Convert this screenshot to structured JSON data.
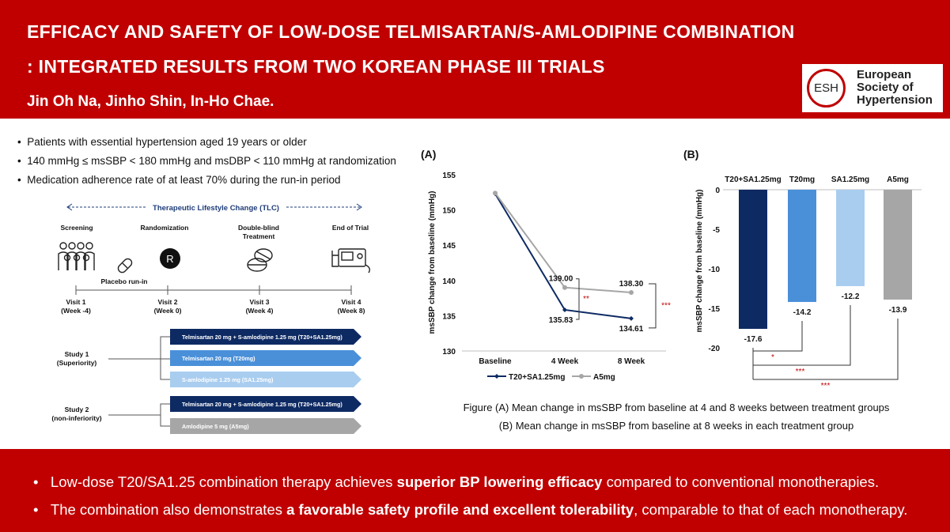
{
  "header": {
    "title_line1": "EFFICACY AND SAFETY OF LOW-DOSE TELMISARTAN/S-AMLODIPINE COMBINATION",
    "title_line2": ": INTEGRATED RESULTS FROM TWO KOREAN PHASE III TRIALS",
    "authors": "Jin Oh Na, Jinho Shin, In-Ho Chae.",
    "logo_abbr": "ESH",
    "logo_line1": "European",
    "logo_line2": "Society of",
    "logo_line3": "Hypertension"
  },
  "colors": {
    "brand_red": "#c00000",
    "navy": "#0e2a63",
    "mid_blue": "#4a90d9",
    "light_blue": "#a9cdef",
    "gray": "#a6a6a6"
  },
  "criteria": [
    "Patients with essential hypertension aged 19 years or older",
    "140 mmHg ≤ msSBP < 180 mmHg and msDBP < 110 mmHg at randomization",
    "Medication adherence rate of at least 70% during the run-in period"
  ],
  "design": {
    "tlc": "Therapeutic Lifestyle Change (TLC)",
    "phases": [
      "Screening",
      "Randomization",
      "Double-blind",
      "Treatment",
      "End of Trial"
    ],
    "placebo": "Placebo run-in",
    "randomization_symbol": "R",
    "visits": [
      {
        "label": "Visit 1",
        "sub": "(Week -4)"
      },
      {
        "label": "Visit 2",
        "sub": "(Week 0)"
      },
      {
        "label": "Visit 3",
        "sub": "(Week 4)"
      },
      {
        "label": "Visit 4",
        "sub": "(Week 8)"
      }
    ],
    "study1": {
      "name": "Study 1",
      "sub": "(Superiority)"
    },
    "study2": {
      "name": "Study 2",
      "sub": "(non-inferiority)"
    },
    "arms1": [
      "Telmisartan 20 mg + S-amlodipine 1.25 mg (T20+SA1.25mg)",
      "Telmisartan 20 mg (T20mg)",
      "S-amlodipine 1.25 mg (SA1.25mg)"
    ],
    "arms2": [
      "Telmisartan 20 mg + S-amlodipine 1.25 mg (T20+SA1.25mg)",
      "Amlodipine 5 mg (A5mg)"
    ]
  },
  "chart_data": [
    {
      "type": "line",
      "panel_label": "(A)",
      "ylabel": "msSBP change from baseline  (mmHg)",
      "categories": [
        "Baseline",
        "4 Week",
        "8 Week"
      ],
      "ylim": [
        130,
        155
      ],
      "yticks": [
        130,
        135,
        140,
        145,
        150,
        155
      ],
      "series": [
        {
          "name": "T20+SA1.25mg",
          "values": [
            152.3,
            135.83,
            134.61
          ],
          "labels": [
            "",
            "135.83",
            "134.61"
          ],
          "color": "#0e2a63"
        },
        {
          "name": "A5mg",
          "values": [
            152.4,
            139.0,
            138.3
          ],
          "labels": [
            "",
            "139.00",
            "138.30"
          ],
          "color": "#a6a6a6"
        }
      ],
      "annotations": {
        "week4": "**",
        "week8": "***"
      }
    },
    {
      "type": "bar",
      "panel_label": "(B)",
      "ylabel": "msSBP change from baseline  (mmHg)",
      "categories": [
        "T20+SA1.25mg",
        "T20mg",
        "SA1.25mg",
        "A5mg"
      ],
      "values": [
        -17.6,
        -14.2,
        -12.2,
        -13.9
      ],
      "labels": [
        "-17.6",
        "-14.2",
        "-12.2",
        "-13.9"
      ],
      "colors": [
        "#0e2a63",
        "#4a90d9",
        "#a9cdef",
        "#a6a6a6"
      ],
      "ylim": [
        -20,
        0
      ],
      "yticks": [
        0,
        -5,
        -10,
        -15,
        -20
      ],
      "significance": [
        "*",
        "***",
        "***"
      ]
    }
  ],
  "caption": {
    "line1": "Figure (A) Mean change in msSBP from baseline at 4 and 8 weeks between treatment groups",
    "line2": "(B) Mean change in msSBP from baseline at 8 weeks in each treatment group"
  },
  "conclusions": [
    {
      "pre": "Low-dose T20/SA1.25 combination therapy achieves ",
      "bold": "superior BP lowering efficacy",
      "post": " compared to conventional monotherapies."
    },
    {
      "pre": "The combination also demonstrates ",
      "bold": "a favorable safety profile and excellent tolerability",
      "post": ", comparable to that of each monotherapy."
    }
  ]
}
